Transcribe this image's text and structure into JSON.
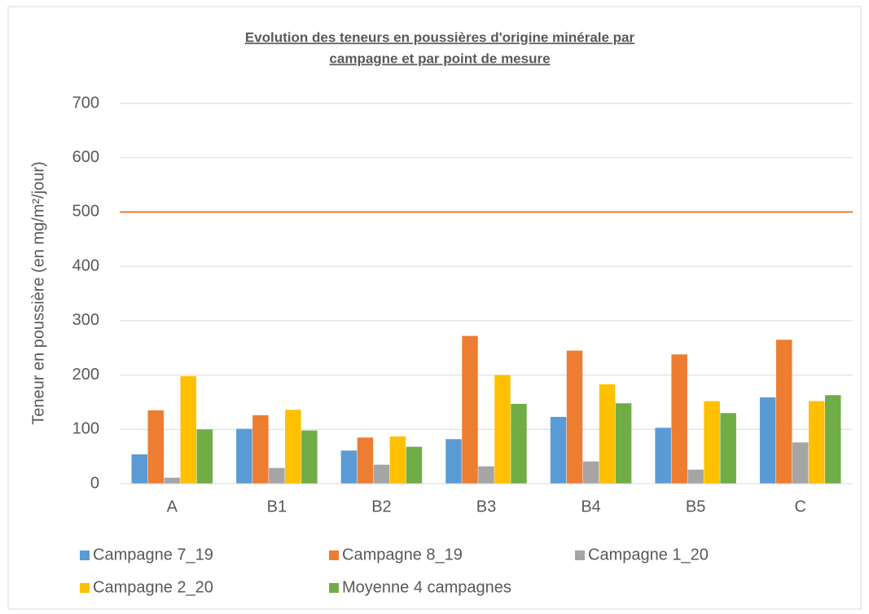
{
  "chart_data": {
    "type": "bar",
    "title": [
      "Evolution des teneurs en poussières d'origine minérale par",
      "campagne et par point de mesure"
    ],
    "y_label": "Teneur en poussière (en mg/m²/jour)",
    "categories": [
      "A",
      "B1",
      "B2",
      "B3",
      "B4",
      "B5",
      "C"
    ],
    "series": [
      {
        "name": "Campagne 7_19",
        "color": "#5b9bd5",
        "values": [
          54,
          101,
          61,
          82,
          123,
          103,
          159
        ]
      },
      {
        "name": "Campagne 8_19",
        "color": "#ed7d31",
        "values": [
          135,
          126,
          85,
          272,
          245,
          238,
          265
        ]
      },
      {
        "name": "Campagne 1_20",
        "color": "#a5a5a5",
        "values": [
          11,
          29,
          35,
          32,
          41,
          26,
          76
        ]
      },
      {
        "name": "Campagne 2_20",
        "color": "#ffc000",
        "values": [
          198,
          136,
          87,
          200,
          183,
          152,
          152
        ]
      },
      {
        "name": "Moyenne 4 campagnes",
        "color": "#70ad47",
        "values": [
          100,
          98,
          68,
          147,
          148,
          130,
          163
        ]
      }
    ],
    "reference_line": {
      "value": 500,
      "color": "#ed7d31"
    },
    "ylim": [
      0,
      700
    ],
    "yticks": [
      0,
      100,
      200,
      300,
      400,
      500,
      600,
      700
    ],
    "grid": true
  }
}
